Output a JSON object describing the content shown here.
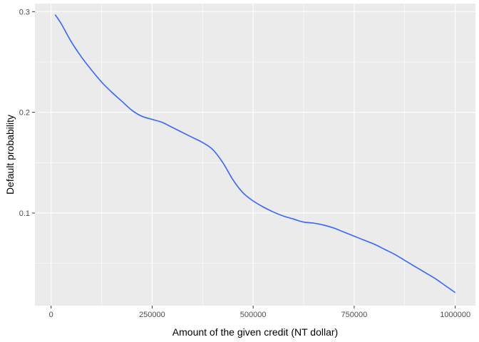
{
  "chart_data": {
    "type": "line",
    "title": "",
    "xlabel": "Amount of the given credit (NT dollar)",
    "ylabel": "Default probability",
    "xlim": [
      -40000,
      1050000
    ],
    "ylim": [
      0.008,
      0.308
    ],
    "x_ticks": [
      0,
      250000,
      500000,
      750000,
      1000000
    ],
    "x_tick_labels": [
      "0",
      "250000",
      "500000",
      "750000",
      "1000000"
    ],
    "y_ticks": [
      0.1,
      0.2,
      0.3
    ],
    "y_tick_labels": [
      "0.1",
      "0.2",
      "0.3"
    ],
    "grid": true,
    "legend": "none",
    "colors": {
      "panel": "#ebebeb",
      "grid": "#ffffff",
      "line": "#3366ff",
      "tick_label": "#4d4d4d",
      "tick": "#333333"
    },
    "series": [
      {
        "x": [
          10000,
          25000,
          50000,
          75000,
          100000,
          125000,
          150000,
          175000,
          200000,
          225000,
          250000,
          275000,
          300000,
          325000,
          350000,
          375000,
          400000,
          425000,
          450000,
          475000,
          500000,
          525000,
          550000,
          575000,
          600000,
          625000,
          650000,
          675000,
          700000,
          725000,
          750000,
          775000,
          800000,
          825000,
          850000,
          875000,
          900000,
          925000,
          950000,
          975000,
          1000000
        ],
        "y": [
          0.297,
          0.288,
          0.27,
          0.255,
          0.242,
          0.23,
          0.22,
          0.211,
          0.202,
          0.196,
          0.193,
          0.19,
          0.185,
          0.18,
          0.175,
          0.17,
          0.163,
          0.15,
          0.133,
          0.12,
          0.112,
          0.106,
          0.101,
          0.097,
          0.094,
          0.091,
          0.09,
          0.088,
          0.085,
          0.081,
          0.077,
          0.073,
          0.069,
          0.064,
          0.059,
          0.053,
          0.047,
          0.041,
          0.035,
          0.028,
          0.021
        ]
      }
    ]
  }
}
